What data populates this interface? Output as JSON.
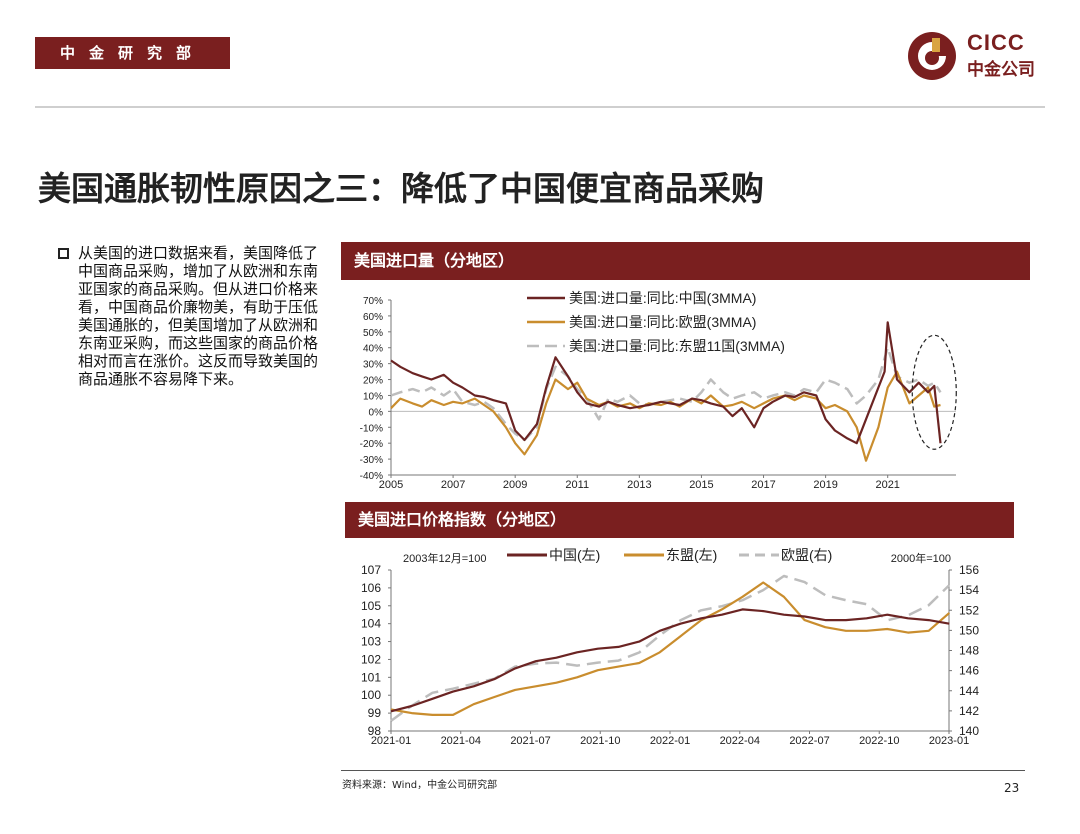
{
  "header": {
    "dept": "中金研究部",
    "logo_en": "CICC",
    "logo_cn": "中金公司"
  },
  "title": "美国通胀韧性原因之三：降低了中国便宜商品采购",
  "bullet": "从美国的进口数据来看，美国降低了中国商品采购，增加了从欧洲和东南亚国家的商品采购。但从进口价格来看，中国商品价廉物美，有助于压低美国通胀的，但美国增加了从欧洲和东南亚采购，而这些国家的商品价格相对而言在涨价。这反而导致美国的商品通胀不容易降下来。",
  "source": "资料来源：Wind，中金公司研究部",
  "page_number": "23",
  "colors": {
    "brand": "#7a1f1f",
    "china": "#6b2423",
    "eu_asean": "#c98d2e",
    "gray": "#bdbdbd"
  },
  "chart_data": [
    {
      "type": "line",
      "title": "美国进口量（分地区）",
      "y_axis": {
        "range": [
          -40,
          70
        ],
        "ticks": [
          "70%",
          "60%",
          "50%",
          "40%",
          "30%",
          "20%",
          "10%",
          "0%",
          "-10%",
          "-20%",
          "-30%",
          "-40%"
        ]
      },
      "x_axis": {
        "range": [
          2005,
          2023.2
        ],
        "ticks": [
          "2005",
          "2007",
          "2009",
          "2011",
          "2013",
          "2015",
          "2017",
          "2019",
          "2021"
        ]
      },
      "legend_position": "top",
      "annotation": "dashed ellipse around latest data",
      "series": [
        {
          "name": "美国:进口量:同比:中国(3MMA)",
          "style": "solid",
          "color": "#6b2423",
          "points": [
            [
              2005,
              32
            ],
            [
              2005.3,
              28
            ],
            [
              2005.7,
              24
            ],
            [
              2006,
              22
            ],
            [
              2006.3,
              20
            ],
            [
              2006.7,
              23
            ],
            [
              2007,
              18
            ],
            [
              2007.3,
              15
            ],
            [
              2007.7,
              10
            ],
            [
              2008,
              9
            ],
            [
              2008.3,
              7
            ],
            [
              2008.7,
              5
            ],
            [
              2009,
              -12
            ],
            [
              2009.3,
              -18
            ],
            [
              2009.7,
              -8
            ],
            [
              2010,
              15
            ],
            [
              2010.3,
              34
            ],
            [
              2010.7,
              22
            ],
            [
              2011,
              12
            ],
            [
              2011.3,
              5
            ],
            [
              2011.7,
              3
            ],
            [
              2012,
              6
            ],
            [
              2012.3,
              4
            ],
            [
              2012.7,
              2
            ],
            [
              2013,
              3
            ],
            [
              2013.3,
              4
            ],
            [
              2013.7,
              6
            ],
            [
              2014,
              5
            ],
            [
              2014.3,
              4
            ],
            [
              2014.7,
              8
            ],
            [
              2015,
              7
            ],
            [
              2015.3,
              5
            ],
            [
              2015.7,
              3
            ],
            [
              2016,
              -3
            ],
            [
              2016.3,
              2
            ],
            [
              2016.7,
              -10
            ],
            [
              2017,
              2
            ],
            [
              2017.3,
              6
            ],
            [
              2017.7,
              10
            ],
            [
              2018,
              9
            ],
            [
              2018.3,
              12
            ],
            [
              2018.7,
              10
            ],
            [
              2019,
              -5
            ],
            [
              2019.3,
              -12
            ],
            [
              2019.7,
              -17
            ],
            [
              2020,
              -20
            ],
            [
              2020.3,
              -5
            ],
            [
              2020.7,
              15
            ],
            [
              2020.9,
              25
            ],
            [
              2021,
              56
            ],
            [
              2021.3,
              20
            ],
            [
              2021.7,
              12
            ],
            [
              2022,
              18
            ],
            [
              2022.3,
              12
            ],
            [
              2022.5,
              16
            ],
            [
              2022.7,
              -20
            ]
          ]
        },
        {
          "name": "美国:进口量:同比:欧盟(3MMA)",
          "style": "solid",
          "color": "#c98d2e",
          "points": [
            [
              2005,
              2
            ],
            [
              2005.3,
              8
            ],
            [
              2005.7,
              5
            ],
            [
              2006,
              3
            ],
            [
              2006.3,
              7
            ],
            [
              2006.7,
              4
            ],
            [
              2007,
              6
            ],
            [
              2007.3,
              5
            ],
            [
              2007.7,
              8
            ],
            [
              2008,
              4
            ],
            [
              2008.3,
              0
            ],
            [
              2008.7,
              -10
            ],
            [
              2009,
              -20
            ],
            [
              2009.3,
              -27
            ],
            [
              2009.7,
              -15
            ],
            [
              2010,
              5
            ],
            [
              2010.3,
              20
            ],
            [
              2010.7,
              14
            ],
            [
              2011,
              18
            ],
            [
              2011.3,
              8
            ],
            [
              2011.7,
              4
            ],
            [
              2012,
              6
            ],
            [
              2012.3,
              3
            ],
            [
              2012.7,
              5
            ],
            [
              2013,
              2
            ],
            [
              2013.3,
              5
            ],
            [
              2013.7,
              4
            ],
            [
              2014,
              6
            ],
            [
              2014.3,
              3
            ],
            [
              2014.7,
              8
            ],
            [
              2015,
              5
            ],
            [
              2015.3,
              10
            ],
            [
              2015.7,
              3
            ],
            [
              2016,
              4
            ],
            [
              2016.3,
              6
            ],
            [
              2016.7,
              2
            ],
            [
              2017,
              5
            ],
            [
              2017.3,
              8
            ],
            [
              2017.7,
              10
            ],
            [
              2018,
              7
            ],
            [
              2018.3,
              10
            ],
            [
              2018.7,
              8
            ],
            [
              2019,
              2
            ],
            [
              2019.3,
              4
            ],
            [
              2019.7,
              0
            ],
            [
              2020,
              -10
            ],
            [
              2020.3,
              -31
            ],
            [
              2020.7,
              -10
            ],
            [
              2021,
              15
            ],
            [
              2021.3,
              25
            ],
            [
              2021.7,
              5
            ],
            [
              2022,
              10
            ],
            [
              2022.3,
              15
            ],
            [
              2022.5,
              3
            ],
            [
              2022.7,
              4
            ]
          ]
        },
        {
          "name": "美国:进口量:同比:东盟11国(3MMA)",
          "style": "dashed",
          "color": "#bdbdbd",
          "points": [
            [
              2005,
              10
            ],
            [
              2005.3,
              12
            ],
            [
              2005.7,
              14
            ],
            [
              2006,
              12
            ],
            [
              2006.3,
              15
            ],
            [
              2006.7,
              10
            ],
            [
              2007,
              14
            ],
            [
              2007.3,
              6
            ],
            [
              2007.7,
              4
            ],
            [
              2008,
              6
            ],
            [
              2008.3,
              2
            ],
            [
              2008.7,
              -8
            ],
            [
              2009,
              -14
            ],
            [
              2009.3,
              -18
            ],
            [
              2009.7,
              -10
            ],
            [
              2010,
              14
            ],
            [
              2010.3,
              28
            ],
            [
              2010.7,
              22
            ],
            [
              2011,
              14
            ],
            [
              2011.3,
              8
            ],
            [
              2011.7,
              -5
            ],
            [
              2012,
              8
            ],
            [
              2012.3,
              6
            ],
            [
              2012.7,
              10
            ],
            [
              2013,
              5
            ],
            [
              2013.3,
              4
            ],
            [
              2013.7,
              6
            ],
            [
              2014,
              7
            ],
            [
              2014.3,
              8
            ],
            [
              2014.7,
              6
            ],
            [
              2015,
              12
            ],
            [
              2015.3,
              20
            ],
            [
              2015.7,
              12
            ],
            [
              2016,
              8
            ],
            [
              2016.3,
              10
            ],
            [
              2016.7,
              12
            ],
            [
              2017,
              8
            ],
            [
              2017.3,
              10
            ],
            [
              2017.7,
              12
            ],
            [
              2018,
              10
            ],
            [
              2018.3,
              14
            ],
            [
              2018.7,
              12
            ],
            [
              2019,
              20
            ],
            [
              2019.3,
              18
            ],
            [
              2019.7,
              14
            ],
            [
              2020,
              5
            ],
            [
              2020.3,
              10
            ],
            [
              2020.7,
              20
            ],
            [
              2021,
              40
            ],
            [
              2021.3,
              22
            ],
            [
              2021.7,
              18
            ],
            [
              2022,
              20
            ],
            [
              2022.3,
              16
            ],
            [
              2022.5,
              18
            ],
            [
              2022.7,
              12
            ]
          ]
        }
      ]
    },
    {
      "type": "line",
      "title": "美国进口价格指数（分地区）",
      "left_axis_note": "2003年12月=100",
      "right_axis_note": "2000年=100",
      "y_left": {
        "range": [
          98,
          107
        ],
        "ticks": [
          "107",
          "106",
          "105",
          "104",
          "103",
          "102",
          "101",
          "100",
          "99",
          "98"
        ]
      },
      "y_right": {
        "range": [
          140,
          156
        ],
        "ticks": [
          "156",
          "154",
          "152",
          "150",
          "148",
          "146",
          "144",
          "142",
          "140"
        ]
      },
      "x_axis": {
        "range": [
          "2021-01",
          "2023-01"
        ],
        "ticks": [
          "2021-01",
          "2021-04",
          "2021-07",
          "2021-10",
          "2022-01",
          "2022-04",
          "2022-07",
          "2022-10",
          "2023-01"
        ]
      },
      "legend_position": "top",
      "series": [
        {
          "name": "中国(左)",
          "axis": "left",
          "style": "solid",
          "color": "#6b2423",
          "points": [
            [
              0,
              99.1
            ],
            [
              1,
              99.4
            ],
            [
              2,
              99.8
            ],
            [
              3,
              100.2
            ],
            [
              4,
              100.5
            ],
            [
              5,
              100.9
            ],
            [
              6,
              101.5
            ],
            [
              7,
              101.9
            ],
            [
              8,
              102.1
            ],
            [
              9,
              102.4
            ],
            [
              10,
              102.6
            ],
            [
              11,
              102.7
            ],
            [
              12,
              103.0
            ],
            [
              13,
              103.6
            ],
            [
              14,
              104.0
            ],
            [
              15,
              104.3
            ],
            [
              16,
              104.5
            ],
            [
              17,
              104.8
            ],
            [
              18,
              104.7
            ],
            [
              19,
              104.5
            ],
            [
              20,
              104.4
            ],
            [
              21,
              104.2
            ],
            [
              22,
              104.2
            ],
            [
              23,
              104.3
            ],
            [
              24,
              104.5
            ],
            [
              25,
              104.3
            ],
            [
              26,
              104.2
            ],
            [
              27,
              104.0
            ]
          ]
        },
        {
          "name": "东盟(左)",
          "axis": "left",
          "style": "solid",
          "color": "#c98d2e",
          "points": [
            [
              0,
              99.2
            ],
            [
              1,
              99.0
            ],
            [
              2,
              98.9
            ],
            [
              3,
              98.9
            ],
            [
              4,
              99.5
            ],
            [
              5,
              99.9
            ],
            [
              6,
              100.3
            ],
            [
              7,
              100.5
            ],
            [
              8,
              100.7
            ],
            [
              9,
              101.0
            ],
            [
              10,
              101.4
            ],
            [
              11,
              101.6
            ],
            [
              12,
              101.8
            ],
            [
              13,
              102.4
            ],
            [
              14,
              103.3
            ],
            [
              15,
              104.2
            ],
            [
              16,
              104.8
            ],
            [
              17,
              105.5
            ],
            [
              18,
              106.3
            ],
            [
              19,
              105.5
            ],
            [
              20,
              104.2
            ],
            [
              21,
              103.8
            ],
            [
              22,
              103.6
            ],
            [
              23,
              103.6
            ],
            [
              24,
              103.7
            ],
            [
              25,
              103.5
            ],
            [
              26,
              103.6
            ],
            [
              27,
              104.6
            ]
          ]
        },
        {
          "name": "欧盟(右)",
          "axis": "right",
          "style": "dashed",
          "color": "#bdbdbd",
          "points": [
            [
              0,
              141.0
            ],
            [
              1,
              142.5
            ],
            [
              2,
              143.8
            ],
            [
              3,
              144.2
            ],
            [
              4,
              144.7
            ],
            [
              5,
              145.2
            ],
            [
              6,
              146.4
            ],
            [
              7,
              146.7
            ],
            [
              8,
              146.8
            ],
            [
              9,
              146.5
            ],
            [
              10,
              146.8
            ],
            [
              11,
              147.0
            ],
            [
              12,
              147.8
            ],
            [
              13,
              149.5
            ],
            [
              14,
              151.0
            ],
            [
              15,
              152.0
            ],
            [
              16,
              152.4
            ],
            [
              17,
              153.0
            ],
            [
              18,
              154.0
            ],
            [
              19,
              155.4
            ],
            [
              20,
              154.8
            ],
            [
              21,
              153.5
            ],
            [
              22,
              153.0
            ],
            [
              23,
              152.6
            ],
            [
              24,
              151.0
            ],
            [
              25,
              151.5
            ],
            [
              26,
              152.5
            ],
            [
              27,
              154.5
            ]
          ]
        }
      ]
    }
  ]
}
